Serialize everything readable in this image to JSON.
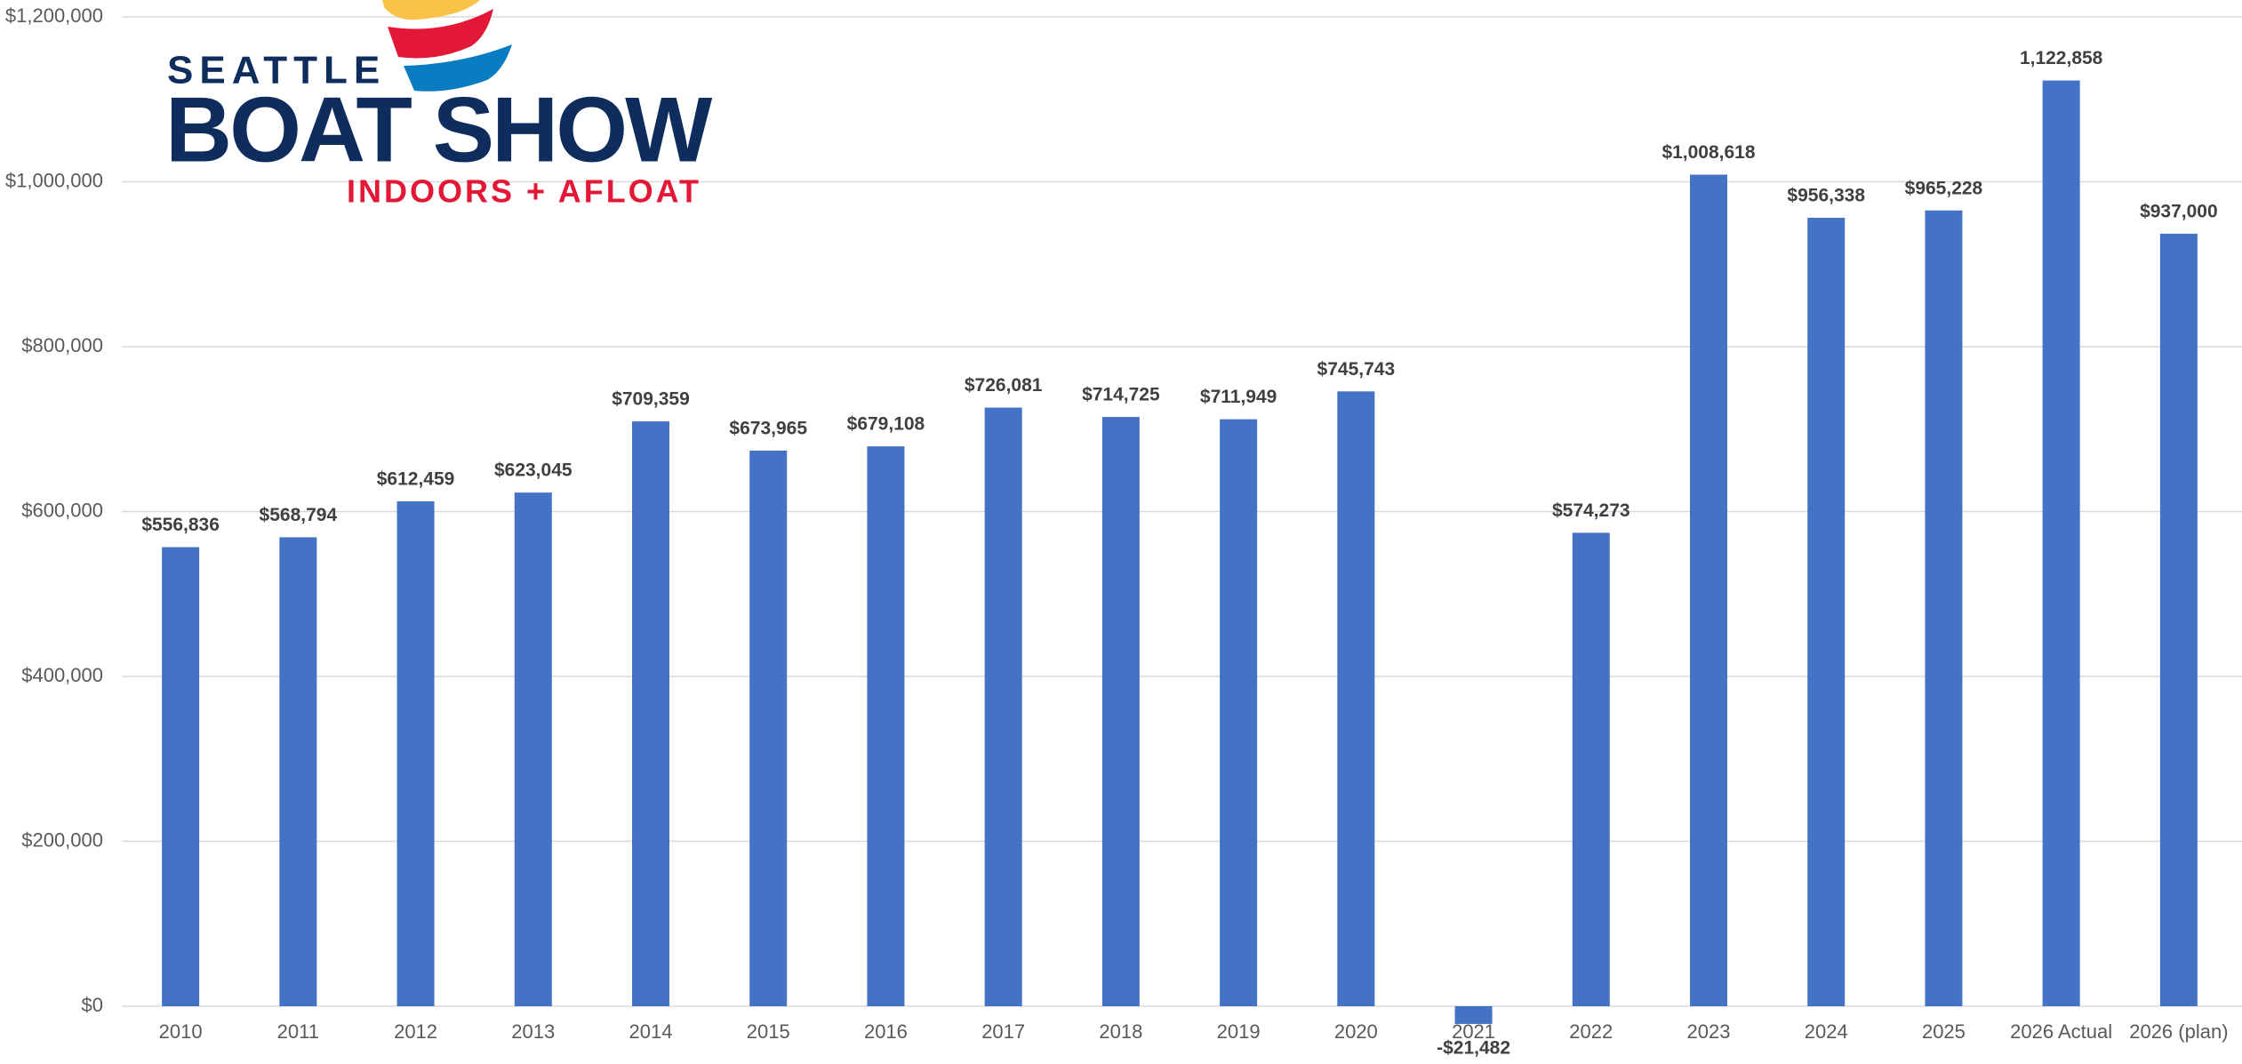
{
  "logo": {
    "line1": "SEATTLE",
    "line2": "BOAT SHOW",
    "line3": "INDOORS + AFLOAT"
  },
  "chart_data": {
    "type": "bar",
    "categories": [
      "2010",
      "2011",
      "2012",
      "2013",
      "2014",
      "2015",
      "2016",
      "2017",
      "2018",
      "2019",
      "2020",
      "2021",
      "2022",
      "2023",
      "2024",
      "2025",
      "2026 Actual",
      "2026 (plan)"
    ],
    "values": [
      556836,
      568794,
      612459,
      623045,
      709359,
      673965,
      679108,
      726081,
      714725,
      711949,
      745743,
      -21482,
      574273,
      1008618,
      956338,
      965228,
      1122858,
      937000
    ],
    "value_labels": [
      "$556,836",
      "$568,794",
      "$612,459",
      "$623,045",
      "$709,359",
      "$673,965",
      "$679,108",
      "$726,081",
      "$714,725",
      "$711,949",
      "$745,743",
      "-$21,482",
      "$574,273",
      "$1,008,618",
      "$956,338",
      "$965,228",
      "1,122,858",
      "$937,000"
    ],
    "color": "#4472c4",
    "ylim": [
      0,
      1200000
    ],
    "yticks": [
      {
        "value": 0,
        "label": "$0"
      },
      {
        "value": 200000,
        "label": "$200,000"
      },
      {
        "value": 400000,
        "label": "$400,000"
      },
      {
        "value": 600000,
        "label": "$600,000"
      },
      {
        "value": 800000,
        "label": "$800,000"
      },
      {
        "value": 1000000,
        "label": "$1,000,000"
      },
      {
        "value": 1200000,
        "label": "$1,200,000"
      }
    ],
    "grid": true
  }
}
